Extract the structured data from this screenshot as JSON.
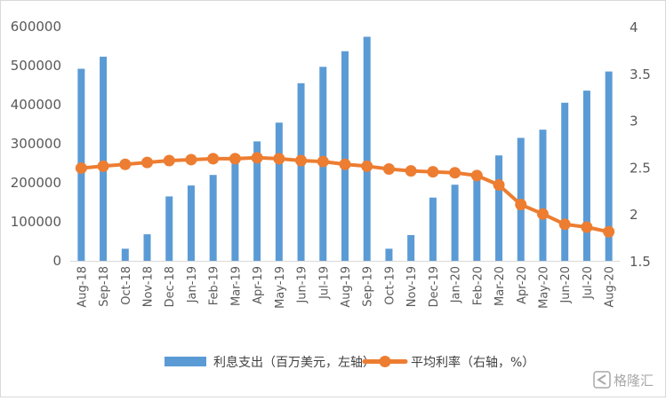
{
  "chart_data": {
    "type": "bar+line",
    "categories": [
      "Aug-18",
      "Sep-18",
      "Oct-18",
      "Nov-18",
      "Dec-18",
      "Jan-19",
      "Feb-19",
      "Mar-19",
      "Apr-19",
      "May-19",
      "Jun-19",
      "Jul-19",
      "Aug-19",
      "Sep-19",
      "Oct-19",
      "Nov-19",
      "Dec-19",
      "Jan-20",
      "Feb-20",
      "Mar-20",
      "Apr-20",
      "May-20",
      "Jun-20",
      "Jul-20",
      "Aug-20"
    ],
    "series": [
      {
        "name": "利息支出（百万美元，左轴）",
        "type": "bar",
        "axis": "left",
        "color": "#5b9bd5",
        "values": [
          492000,
          523000,
          31000,
          68000,
          165000,
          193000,
          220000,
          270000,
          306000,
          354000,
          455000,
          497000,
          537000,
          574000,
          31000,
          66000,
          162000,
          195000,
          230000,
          270000,
          315000,
          336000,
          405000,
          436000,
          485000
        ]
      },
      {
        "name": "平均利率（右轴，%）",
        "type": "line",
        "axis": "right",
        "color": "#ed7d31",
        "values": [
          2.49,
          2.51,
          2.53,
          2.55,
          2.57,
          2.58,
          2.59,
          2.59,
          2.6,
          2.59,
          2.57,
          2.56,
          2.53,
          2.51,
          2.48,
          2.46,
          2.45,
          2.44,
          2.41,
          2.31,
          2.1,
          2.0,
          1.89,
          1.86,
          1.81
        ]
      }
    ],
    "left_axis": {
      "min": 0,
      "max": 600000,
      "step": 100000,
      "ticks": [
        "0",
        "100000",
        "200000",
        "300000",
        "400000",
        "500000",
        "600000"
      ]
    },
    "right_axis": {
      "min": 1.5,
      "max": 4,
      "step": 0.5,
      "ticks": [
        "1.5",
        "2",
        "2.5",
        "3",
        "3.5",
        "4"
      ]
    },
    "grid": false,
    "legend_position": "bottom"
  },
  "watermark": {
    "text": "格隆汇"
  }
}
